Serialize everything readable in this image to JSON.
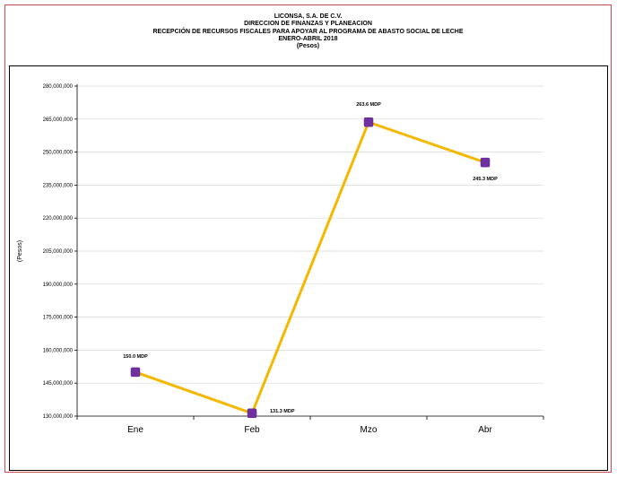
{
  "header": {
    "line1": "LICONSA, S.A. DE C.V.",
    "line2": "DIRECCION DE FINANZAS Y PLANEACION",
    "line3": "RECEPCIÓN DE RECURSOS FISCALES PARA APOYAR AL PROGRAMA DE ABASTO SOCIAL DE LECHE",
    "line4": "ENERO-ABRIL 2018",
    "line5": "(Pesos)"
  },
  "colors": {
    "line": "#f5b800",
    "marker": "#7030a0",
    "border": "#c0504d",
    "grid": "#d9d9d9"
  },
  "chart_data": {
    "type": "line",
    "title": "RECEPCIÓN DE RECURSOS FISCALES PARA APOYAR AL PROGRAMA DE ABASTO SOCIAL DE LECHE",
    "xlabel": "",
    "ylabel": "(Pesos)",
    "categories": [
      "Ene",
      "Feb",
      "Mzo",
      "Abr"
    ],
    "values": [
      150000000,
      131300000,
      263600000,
      245300000
    ],
    "data_labels": [
      "150.0 MDP",
      "131.3 MDP",
      "263.6 MDP",
      "245.3 MDP"
    ],
    "ylim": [
      130000000,
      280000000
    ],
    "yticks": [
      130000000,
      145000000,
      160000000,
      175000000,
      190000000,
      205000000,
      220000000,
      235000000,
      250000000,
      265000000,
      280000000
    ],
    "ytick_labels": [
      "130,000,000",
      "145,000,000",
      "160,000,000",
      "175,000,000",
      "190,000,000",
      "205,000,000",
      "220,000,000",
      "235,000,000",
      "250,000,000",
      "265,000,000",
      "280,000,000"
    ],
    "grid": true,
    "legend": "none",
    "marker": "square"
  }
}
